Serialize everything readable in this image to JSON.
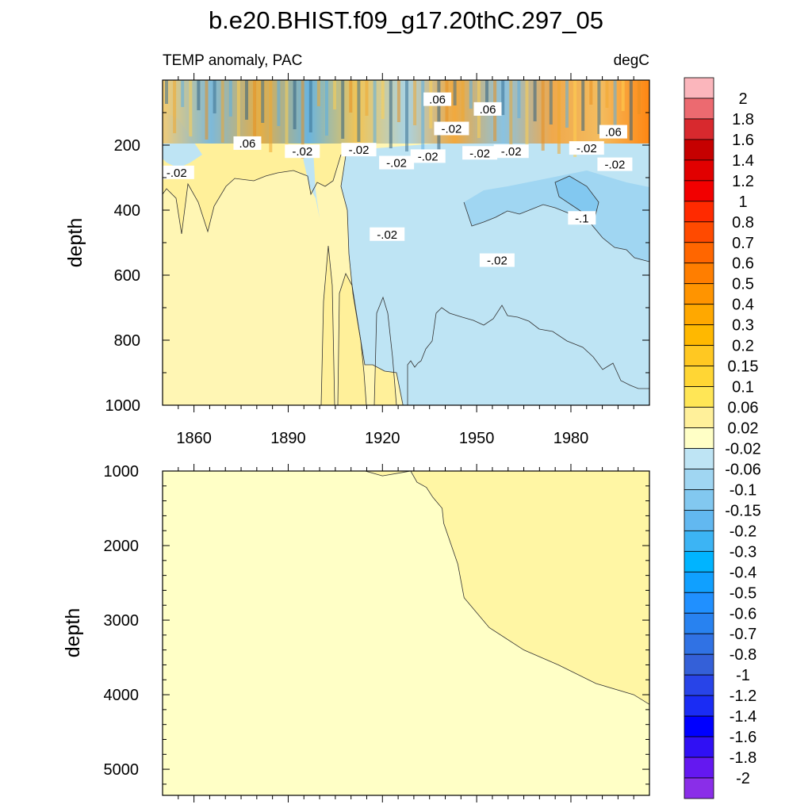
{
  "chart_data": [
    {
      "type": "heatmap",
      "title": "b.e20.BHIST.f09_g17.20thC.297_05",
      "left_string": "TEMP anomaly, PAC",
      "right_string": "degC",
      "ylabel": "depth",
      "ylim": [
        1000,
        0
      ],
      "yticks": [
        200,
        400,
        600,
        800,
        1000
      ],
      "ytick_labels": [
        "200",
        "400",
        "600",
        "800",
        "1000"
      ],
      "xlim": [
        1850,
        2005
      ],
      "xticks": [
        1860,
        1890,
        1920,
        1950,
        1980
      ],
      "xtick_labels": [
        "1860",
        "1890",
        "1920",
        "1950",
        "1980"
      ],
      "contour_labels": [
        {
          "text": ".06",
          "x": 1937.5,
          "y": 60
        },
        {
          "text": ".06",
          "x": 1953.5,
          "y": 90
        },
        {
          "text": "-.02",
          "x": 1942,
          "y": 150
        },
        {
          "text": ".06",
          "x": 1877,
          "y": 195
        },
        {
          "text": ".06",
          "x": 1993.5,
          "y": 160
        },
        {
          "text": "-.02",
          "x": 1894.5,
          "y": 220
        },
        {
          "text": "-.02",
          "x": 1912.5,
          "y": 215
        },
        {
          "text": "-.02",
          "x": 1854.5,
          "y": 285
        },
        {
          "text": "-.02",
          "x": 1924.5,
          "y": 255
        },
        {
          "text": "-.02",
          "x": 1934.5,
          "y": 235
        },
        {
          "text": "-.02",
          "x": 1951,
          "y": 225
        },
        {
          "text": "-.02",
          "x": 1961,
          "y": 220
        },
        {
          "text": "-.02",
          "x": 1985,
          "y": 210
        },
        {
          "text": "-.02",
          "x": 1994,
          "y": 260
        },
        {
          "text": "-.02",
          "x": 1921.5,
          "y": 475
        },
        {
          "text": "-.02",
          "x": 1956.5,
          "y": 555
        },
        {
          "text": "-.1",
          "x": 1983.5,
          "y": 425
        }
      ]
    },
    {
      "type": "heatmap",
      "ylabel": "depth",
      "ylim": [
        5350,
        1000
      ],
      "yticks": [
        1000,
        2000,
        3000,
        4000,
        5000
      ],
      "ytick_labels": [
        "1000",
        "2000",
        "3000",
        "4000",
        "5000"
      ],
      "xlim": [
        1850,
        2005
      ],
      "boundary_0.02": {
        "x": [
          1914.5,
          1920,
          1929,
          1931,
          1934,
          1936,
          1939,
          1939.5,
          1944,
          1946,
          1954,
          1965,
          1976,
          1988,
          2000,
          2005
        ],
        "depth": [
          1000,
          1065,
          1000,
          1150,
          1220,
          1350,
          1500,
          1700,
          2250,
          2700,
          3100,
          3400,
          3600,
          3850,
          4000,
          4130
        ]
      },
      "upper_region_value": 0.06,
      "lower_region_value": 0.02
    }
  ],
  "colorbar": {
    "labels": [
      "2",
      "1.8",
      "1.6",
      "1.4",
      "1.2",
      "1",
      "0.8",
      "0.7",
      "0.6",
      "0.5",
      "0.4",
      "0.3",
      "0.2",
      "0.15",
      "0.1",
      "0.06",
      "0.02",
      "-0.02",
      "-0.06",
      "-0.1",
      "-0.15",
      "-0.2",
      "-0.3",
      "-0.4",
      "-0.5",
      "-0.6",
      "-0.7",
      "-0.8",
      "-1",
      "-1.2",
      "-1.4",
      "-1.6",
      "-1.8",
      "-2"
    ],
    "colors": [
      "#fbb6bc",
      "#ec6a70",
      "#d8292e",
      "#c60000",
      "#e10000",
      "#f20000",
      "#ff2a00",
      "#ff4a00",
      "#ff6600",
      "#ff7e00",
      "#ff9400",
      "#ffa800",
      "#ffb800",
      "#ffc822",
      "#ffd634",
      "#ffe656",
      "#fff09a",
      "#ffffc6",
      "#bee4f4",
      "#a0d6f2",
      "#82c8f0",
      "#62b8f0",
      "#3cb4f4",
      "#00b4ff",
      "#10a0ff",
      "#2090ff",
      "#2882f0",
      "#3072e4",
      "#3460d8",
      "#2844e8",
      "#1a2cf4",
      "#0000ff",
      "#3010f4",
      "#6418f0",
      "#8a2ee8"
    ]
  }
}
